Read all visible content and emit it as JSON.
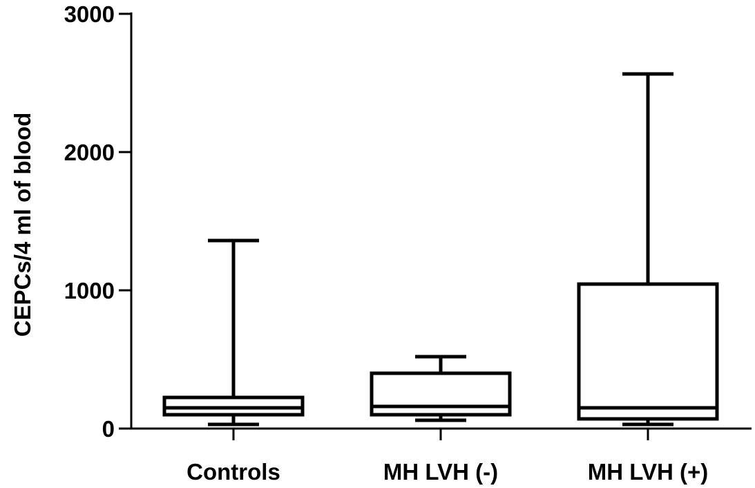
{
  "chart_data": {
    "type": "box",
    "title": "",
    "xlabel": "",
    "ylabel": "CEPCs/4 ml of blood",
    "ylim": [
      0,
      3000
    ],
    "yticks": [
      0,
      1000,
      2000,
      3000
    ],
    "ytick_labels": [
      "0",
      "1000",
      "2000",
      "3000"
    ],
    "grid": false,
    "legend": "none",
    "categories": [
      "Controls",
      "MH LVH (-)",
      "MH LVH (+)"
    ],
    "series": [
      {
        "boxes": [
          {
            "min": 30,
            "q1": 100,
            "median": 150,
            "q3": 225,
            "max": 1360
          },
          {
            "min": 60,
            "q1": 100,
            "median": 160,
            "q3": 400,
            "max": 520
          },
          {
            "min": 30,
            "q1": 70,
            "median": 150,
            "q3": 1045,
            "max": 2565
          }
        ]
      }
    ],
    "colors": {
      "stroke": "#000000",
      "background": "#ffffff"
    }
  }
}
